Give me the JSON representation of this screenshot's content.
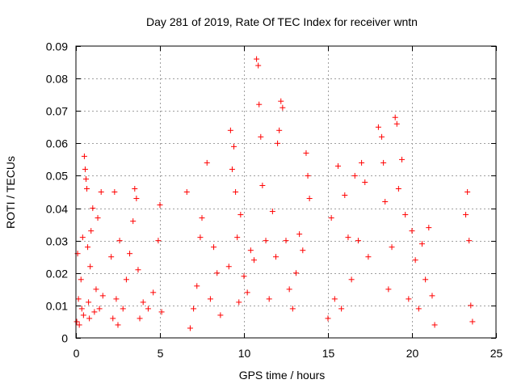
{
  "chart_data": {
    "type": "scatter",
    "title": "Day 281 of 2019, Rate Of TEC Index for receiver wntn",
    "xlabel": "GPS time / hours",
    "ylabel": "ROTI / TECUs",
    "xlim": [
      0,
      25
    ],
    "ylim": [
      0,
      0.09
    ],
    "x_ticks": [
      0,
      5,
      10,
      15,
      20,
      25
    ],
    "x_tick_labels": [
      "0",
      "5",
      "10",
      "15",
      "20",
      "25"
    ],
    "y_ticks": [
      0,
      0.01,
      0.02,
      0.03,
      0.04,
      0.05,
      0.06,
      0.07,
      0.08,
      0.09
    ],
    "y_tick_labels": [
      "0",
      "0.01",
      "0.02",
      "0.03",
      "0.04",
      "0.05",
      "0.06",
      "0.07",
      "0.08",
      "0.09"
    ],
    "grid": true,
    "marker": "+",
    "marker_color": "#ff0000",
    "series": [
      {
        "name": "ROTI",
        "x": [
          0.05,
          0.1,
          0.15,
          0.2,
          0.3,
          0.35,
          0.4,
          0.45,
          0.5,
          0.55,
          0.6,
          0.65,
          0.7,
          0.75,
          0.8,
          0.85,
          0.9,
          1.0,
          1.1,
          1.2,
          1.3,
          1.4,
          1.5,
          1.6,
          2.1,
          2.2,
          2.3,
          2.4,
          2.5,
          2.6,
          2.8,
          3.0,
          3.2,
          3.4,
          3.5,
          3.6,
          3.7,
          3.8,
          4.0,
          4.3,
          4.6,
          4.9,
          5.0,
          5.1,
          6.6,
          6.8,
          7.0,
          7.2,
          7.4,
          7.5,
          7.8,
          8.0,
          8.2,
          8.4,
          8.6,
          9.1,
          9.2,
          9.3,
          9.4,
          9.5,
          9.6,
          9.7,
          9.8,
          10.0,
          10.2,
          10.4,
          10.6,
          10.75,
          10.85,
          10.9,
          11.0,
          11.1,
          11.3,
          11.5,
          11.7,
          11.9,
          12.0,
          12.1,
          12.2,
          12.3,
          12.5,
          12.7,
          12.9,
          13.1,
          13.3,
          13.5,
          13.7,
          13.8,
          13.9,
          15.0,
          15.2,
          15.4,
          15.6,
          15.8,
          16.0,
          16.2,
          16.4,
          16.6,
          16.8,
          17.0,
          17.2,
          17.4,
          18.0,
          18.2,
          18.3,
          18.4,
          18.6,
          18.8,
          19.0,
          19.1,
          19.2,
          19.4,
          19.6,
          19.8,
          20.0,
          20.2,
          20.4,
          20.6,
          20.8,
          21.0,
          21.2,
          21.35,
          23.2,
          23.3,
          23.4,
          23.5,
          23.6
        ],
        "y": [
          0.005,
          0.026,
          0.012,
          0.004,
          0.018,
          0.009,
          0.031,
          0.007,
          0.056,
          0.052,
          0.049,
          0.046,
          0.028,
          0.011,
          0.006,
          0.022,
          0.033,
          0.04,
          0.008,
          0.015,
          0.037,
          0.009,
          0.045,
          0.013,
          0.025,
          0.006,
          0.045,
          0.012,
          0.004,
          0.03,
          0.009,
          0.018,
          0.026,
          0.036,
          0.046,
          0.043,
          0.021,
          0.006,
          0.011,
          0.009,
          0.014,
          0.03,
          0.041,
          0.008,
          0.045,
          0.003,
          0.009,
          0.016,
          0.031,
          0.037,
          0.054,
          0.012,
          0.028,
          0.02,
          0.007,
          0.022,
          0.064,
          0.052,
          0.059,
          0.045,
          0.031,
          0.011,
          0.038,
          0.019,
          0.014,
          0.027,
          0.024,
          0.086,
          0.084,
          0.072,
          0.062,
          0.047,
          0.03,
          0.012,
          0.039,
          0.025,
          0.06,
          0.064,
          0.073,
          0.071,
          0.03,
          0.015,
          0.009,
          0.02,
          0.032,
          0.027,
          0.057,
          0.05,
          0.043,
          0.006,
          0.037,
          0.012,
          0.053,
          0.009,
          0.044,
          0.031,
          0.018,
          0.05,
          0.03,
          0.054,
          0.048,
          0.025,
          0.065,
          0.062,
          0.054,
          0.042,
          0.015,
          0.028,
          0.068,
          0.066,
          0.046,
          0.055,
          0.038,
          0.012,
          0.033,
          0.024,
          0.009,
          0.029,
          0.018,
          0.034,
          0.013,
          0.004,
          0.038,
          0.045,
          0.03,
          0.01,
          0.005
        ]
      }
    ]
  }
}
